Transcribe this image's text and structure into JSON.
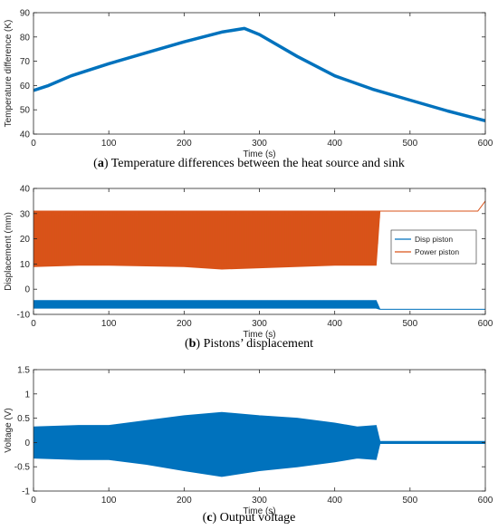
{
  "captions": [
    {
      "letter": "a",
      "text": "Temperature differences between the heat source and sink"
    },
    {
      "letter": "b",
      "text": "Pistons’ displacement"
    },
    {
      "letter": "c",
      "text": "Output voltage"
    }
  ],
  "chart_data": [
    {
      "type": "line",
      "xlabel": "Time (s)",
      "ylabel": "Temperature difference (K)",
      "xlim": [
        0,
        600
      ],
      "ylim": [
        40,
        90
      ],
      "xticks": [
        0,
        100,
        200,
        300,
        400,
        500,
        600
      ],
      "yticks": [
        40,
        50,
        60,
        70,
        80,
        90
      ],
      "series": [
        {
          "color": "#0072BD",
          "x": [
            0,
            20,
            50,
            100,
            150,
            200,
            250,
            280,
            300,
            350,
            400,
            450,
            500,
            550,
            600
          ],
          "y": [
            58,
            60,
            64,
            69,
            73.5,
            78,
            82,
            83.5,
            81,
            72,
            64,
            58.5,
            54,
            49.5,
            45.5
          ]
        }
      ]
    },
    {
      "type": "line",
      "xlabel": "Time (s)",
      "ylabel": "Displacement (mm)",
      "xlim": [
        0,
        600
      ],
      "ylim": [
        -10,
        40
      ],
      "xticks": [
        0,
        100,
        200,
        300,
        400,
        500,
        600
      ],
      "yticks": [
        -10,
        0,
        10,
        20,
        30,
        40
      ],
      "legend": "right",
      "series": [
        {
          "name": "Disp piston",
          "color": "#0072BD",
          "x": [
            0,
            100,
            200,
            300,
            400,
            455,
            460,
            500,
            600
          ],
          "upper": [
            -4.5,
            -4.5,
            -4.5,
            -4.5,
            -4.5,
            -4.5,
            -8,
            -8,
            -8
          ],
          "lower": [
            -7.5,
            -7.5,
            -7.5,
            -7.5,
            -7.5,
            -7.5,
            -8,
            -8,
            -8
          ]
        },
        {
          "name": "Power piston",
          "color": "#D95319",
          "x": [
            0,
            60,
            100,
            200,
            250,
            300,
            400,
            455,
            460,
            500,
            580,
            590,
            600
          ],
          "upper": [
            31,
            31,
            31,
            31,
            31,
            31,
            31,
            31,
            31,
            31,
            31,
            31,
            35
          ],
          "lower": [
            9,
            9.5,
            9.5,
            9,
            8,
            8.5,
            9.5,
            9.5,
            31,
            31,
            31,
            31,
            35
          ]
        }
      ]
    },
    {
      "type": "line",
      "xlabel": "Time (s)",
      "ylabel": "Voltage (V)",
      "xlim": [
        0,
        600
      ],
      "ylim": [
        -1,
        1.5
      ],
      "xticks": [
        0,
        100,
        200,
        300,
        400,
        500,
        600
      ],
      "yticks": [
        -1,
        -0.5,
        0,
        0.5,
        1,
        1.5
      ],
      "yticklabels": [
        "-1",
        "-0.5",
        "0",
        "0.5",
        "1",
        "1.5"
      ],
      "series": [
        {
          "color": "#0072BD",
          "x": [
            0,
            60,
            100,
            150,
            200,
            250,
            300,
            350,
            400,
            430,
            455,
            460,
            580,
            600
          ],
          "upper": [
            0.32,
            0.35,
            0.35,
            0.45,
            0.55,
            0.62,
            0.55,
            0.5,
            0.4,
            0.32,
            0.35,
            0.02,
            0.02,
            0.02
          ],
          "lower": [
            -0.32,
            -0.35,
            -0.35,
            -0.45,
            -0.58,
            -0.7,
            -0.58,
            -0.5,
            -0.4,
            -0.32,
            -0.35,
            -0.02,
            -0.02,
            -0.02
          ]
        }
      ]
    }
  ]
}
